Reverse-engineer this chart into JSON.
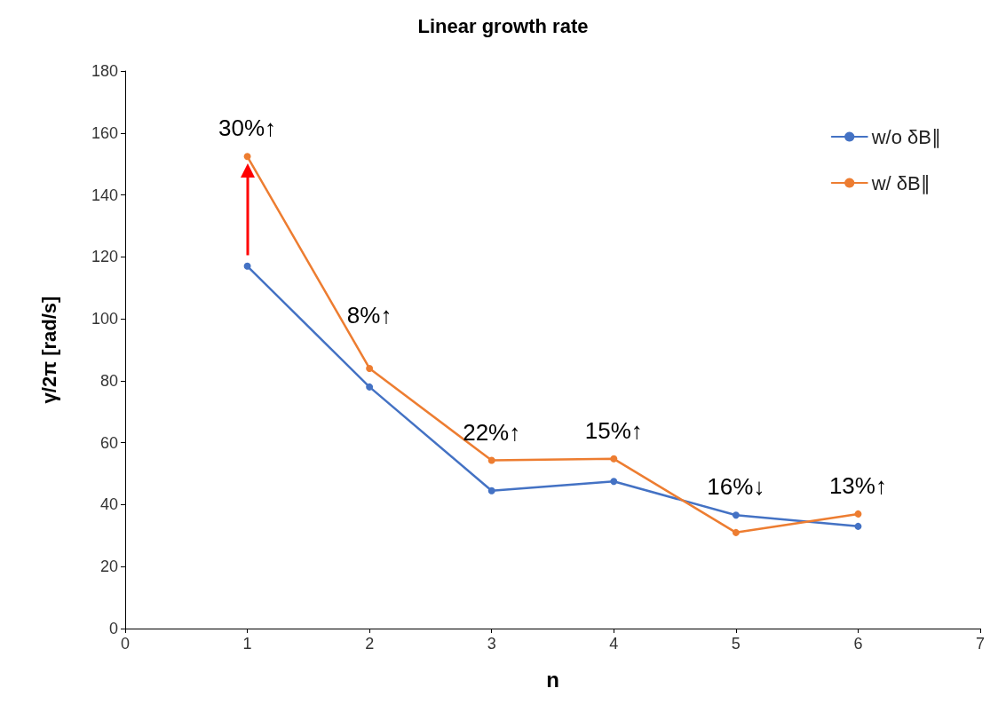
{
  "chart_data": {
    "type": "line",
    "title": "Linear growth rate",
    "xlabel": "n",
    "ylabel": "γ/2π [rad/s]",
    "x": [
      1,
      2,
      3,
      4,
      5,
      6
    ],
    "series": [
      {
        "name": "w/o δB∥",
        "color": "#4472c4",
        "values": [
          117,
          78,
          44.5,
          47.5,
          36.6,
          33
        ]
      },
      {
        "name": "w/ δB∥",
        "color": "#ed7d31",
        "values": [
          152.4,
          84,
          54.3,
          54.8,
          31,
          37
        ]
      }
    ],
    "annotations": [
      "30%↑",
      "8%↑",
      "22%↑",
      "15%↑",
      "16%↓",
      "13%↑"
    ],
    "xlim": [
      0,
      7
    ],
    "xticks": [
      0,
      1,
      2,
      3,
      4,
      5,
      6,
      7
    ],
    "ylim": [
      0,
      180
    ],
    "yticks": [
      0,
      20,
      40,
      60,
      80,
      100,
      120,
      140,
      160,
      180
    ],
    "grid": false,
    "legend": "top right",
    "marker": "circle",
    "line_style": "solid"
  }
}
